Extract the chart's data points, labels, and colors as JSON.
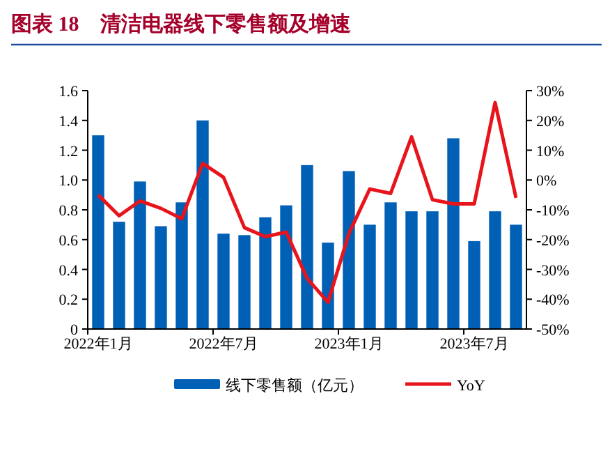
{
  "chart_data": {
    "type": "bar",
    "title": "图表 18　清洁电器线下零售额及增速",
    "categories": [
      "2022年1月",
      null,
      null,
      null,
      null,
      null,
      "2022年7月",
      null,
      null,
      null,
      null,
      null,
      "2023年1月",
      null,
      null,
      null,
      null,
      null,
      "2023年7月",
      null,
      null
    ],
    "series": [
      {
        "name": "线下零售额（亿元）",
        "color": "#0060b6",
        "values": [
          1.3,
          0.72,
          0.99,
          0.69,
          0.85,
          1.4,
          0.64,
          0.63,
          0.75,
          0.83,
          1.1,
          0.58,
          1.06,
          0.7,
          0.85,
          0.79,
          0.79,
          1.28,
          0.59,
          0.79,
          0.7
        ]
      },
      {
        "name": "YoY",
        "type": "line",
        "axis": "y2",
        "color": "#e8141c",
        "values": [
          -5,
          -12,
          -7,
          -9.5,
          -13,
          5.6,
          0.9,
          -16,
          -19,
          -17.5,
          -33,
          -41,
          -18,
          -3,
          -4.5,
          14.5,
          -6.6,
          -8,
          -8,
          26,
          -6
        ]
      }
    ],
    "ylim": [
      0,
      1.6
    ],
    "yticks": [
      0,
      {
        "value": 0.2,
        "label": "0.2"
      },
      {
        "value": 0.4,
        "label": "0.4"
      },
      {
        "value": 0.6,
        "label": "0.6"
      },
      {
        "value": 0.8,
        "label": "0.8"
      },
      {
        "value": 1.0,
        "label": "1.0"
      },
      {
        "value": 1.2,
        "label": "1.2"
      },
      {
        "value": 1.4,
        "label": "1.4"
      },
      {
        "value": 1.6,
        "label": "1.6"
      }
    ],
    "y2lim": [
      -50,
      30
    ],
    "y2ticks": [
      {
        "value": -50,
        "label": "-50%"
      },
      {
        "value": -40,
        "label": "-40%"
      },
      {
        "value": -30,
        "label": "-30%"
      },
      {
        "value": -20,
        "label": "-20%"
      },
      {
        "value": -10,
        "label": "-10%"
      },
      {
        "value": 0,
        "label": "0%"
      },
      {
        "value": 10,
        "label": "10%"
      },
      {
        "value": 20,
        "label": "20%"
      },
      {
        "value": 30,
        "label": "30%"
      }
    ],
    "legend": "bottom",
    "grid": false
  }
}
